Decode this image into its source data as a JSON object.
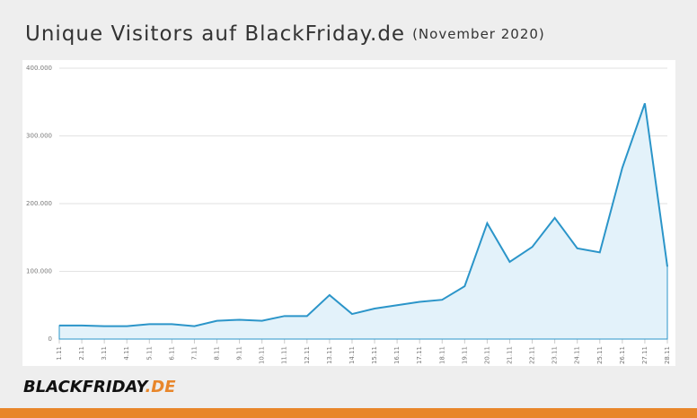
{
  "chart_data": {
    "type": "area",
    "title": "Unique Visitors auf BlackFriday.de",
    "subtitle": "(November 2020)",
    "categories": [
      "1.11",
      "2.11",
      "3.11",
      "4.11",
      "5.11",
      "6.11",
      "7.11",
      "8.11",
      "9.11",
      "10.11",
      "11.11",
      "12.11",
      "13.11",
      "14.11",
      "15.11",
      "16.11",
      "17.11",
      "18.11",
      "19.11",
      "20.11",
      "21.11",
      "22.11",
      "23.11",
      "24.11",
      "25.11",
      "26.11",
      "27.11",
      "28.11"
    ],
    "values": [
      20000,
      20000,
      19000,
      19000,
      22000,
      22000,
      19000,
      27000,
      28500,
      27000,
      34000,
      34000,
      65000,
      37000,
      45000,
      50000,
      55000,
      58000,
      78000,
      171000,
      114000,
      136000,
      179000,
      134000,
      128000,
      253000,
      348000,
      107000
    ],
    "color": "#2b95c9",
    "fill_color": "#e3f2fa",
    "ylim": [
      0,
      400000
    ],
    "yticks": [
      0,
      {
        "value": 100000,
        "label": "100.000"
      },
      {
        "value": 200000,
        "label": "200.000"
      },
      {
        "value": 300000,
        "label": "300.000"
      },
      {
        "value": 400000,
        "label": "400.000"
      }
    ],
    "grid": true,
    "logo": {
      "main": "BLACKFRIDAY",
      "suffix": ".DE"
    }
  }
}
